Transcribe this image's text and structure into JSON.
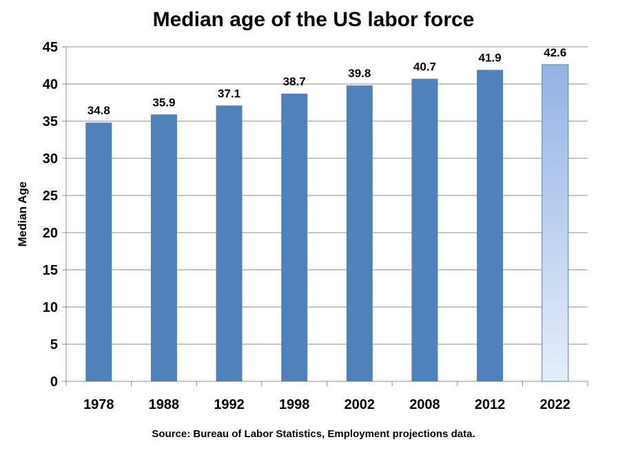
{
  "chart_data": {
    "type": "bar",
    "title": "Median age of the US labor force",
    "xlabel": "",
    "ylabel": "Median Age",
    "categories": [
      "1978",
      "1988",
      "1992",
      "1998",
      "2002",
      "2008",
      "2012",
      "2022"
    ],
    "values": [
      34.8,
      35.9,
      37.1,
      38.7,
      39.8,
      40.7,
      41.9,
      42.6
    ],
    "data_labels": [
      "34.8",
      "35.9",
      "37.1",
      "38.7",
      "39.8",
      "40.7",
      "41.9",
      "42.6"
    ],
    "ylim": [
      0,
      45
    ],
    "yticks": [
      0,
      5,
      10,
      15,
      20,
      25,
      30,
      35,
      40,
      45
    ],
    "grid": true,
    "legend": "none",
    "bar_color": "#4F81BD",
    "projected_bar_gradient": [
      "#93B3E3",
      "#E6EEFA"
    ],
    "projected_category": "2022"
  },
  "source": "Source:  Bureau of Labor Statistics, Employment  projections data."
}
